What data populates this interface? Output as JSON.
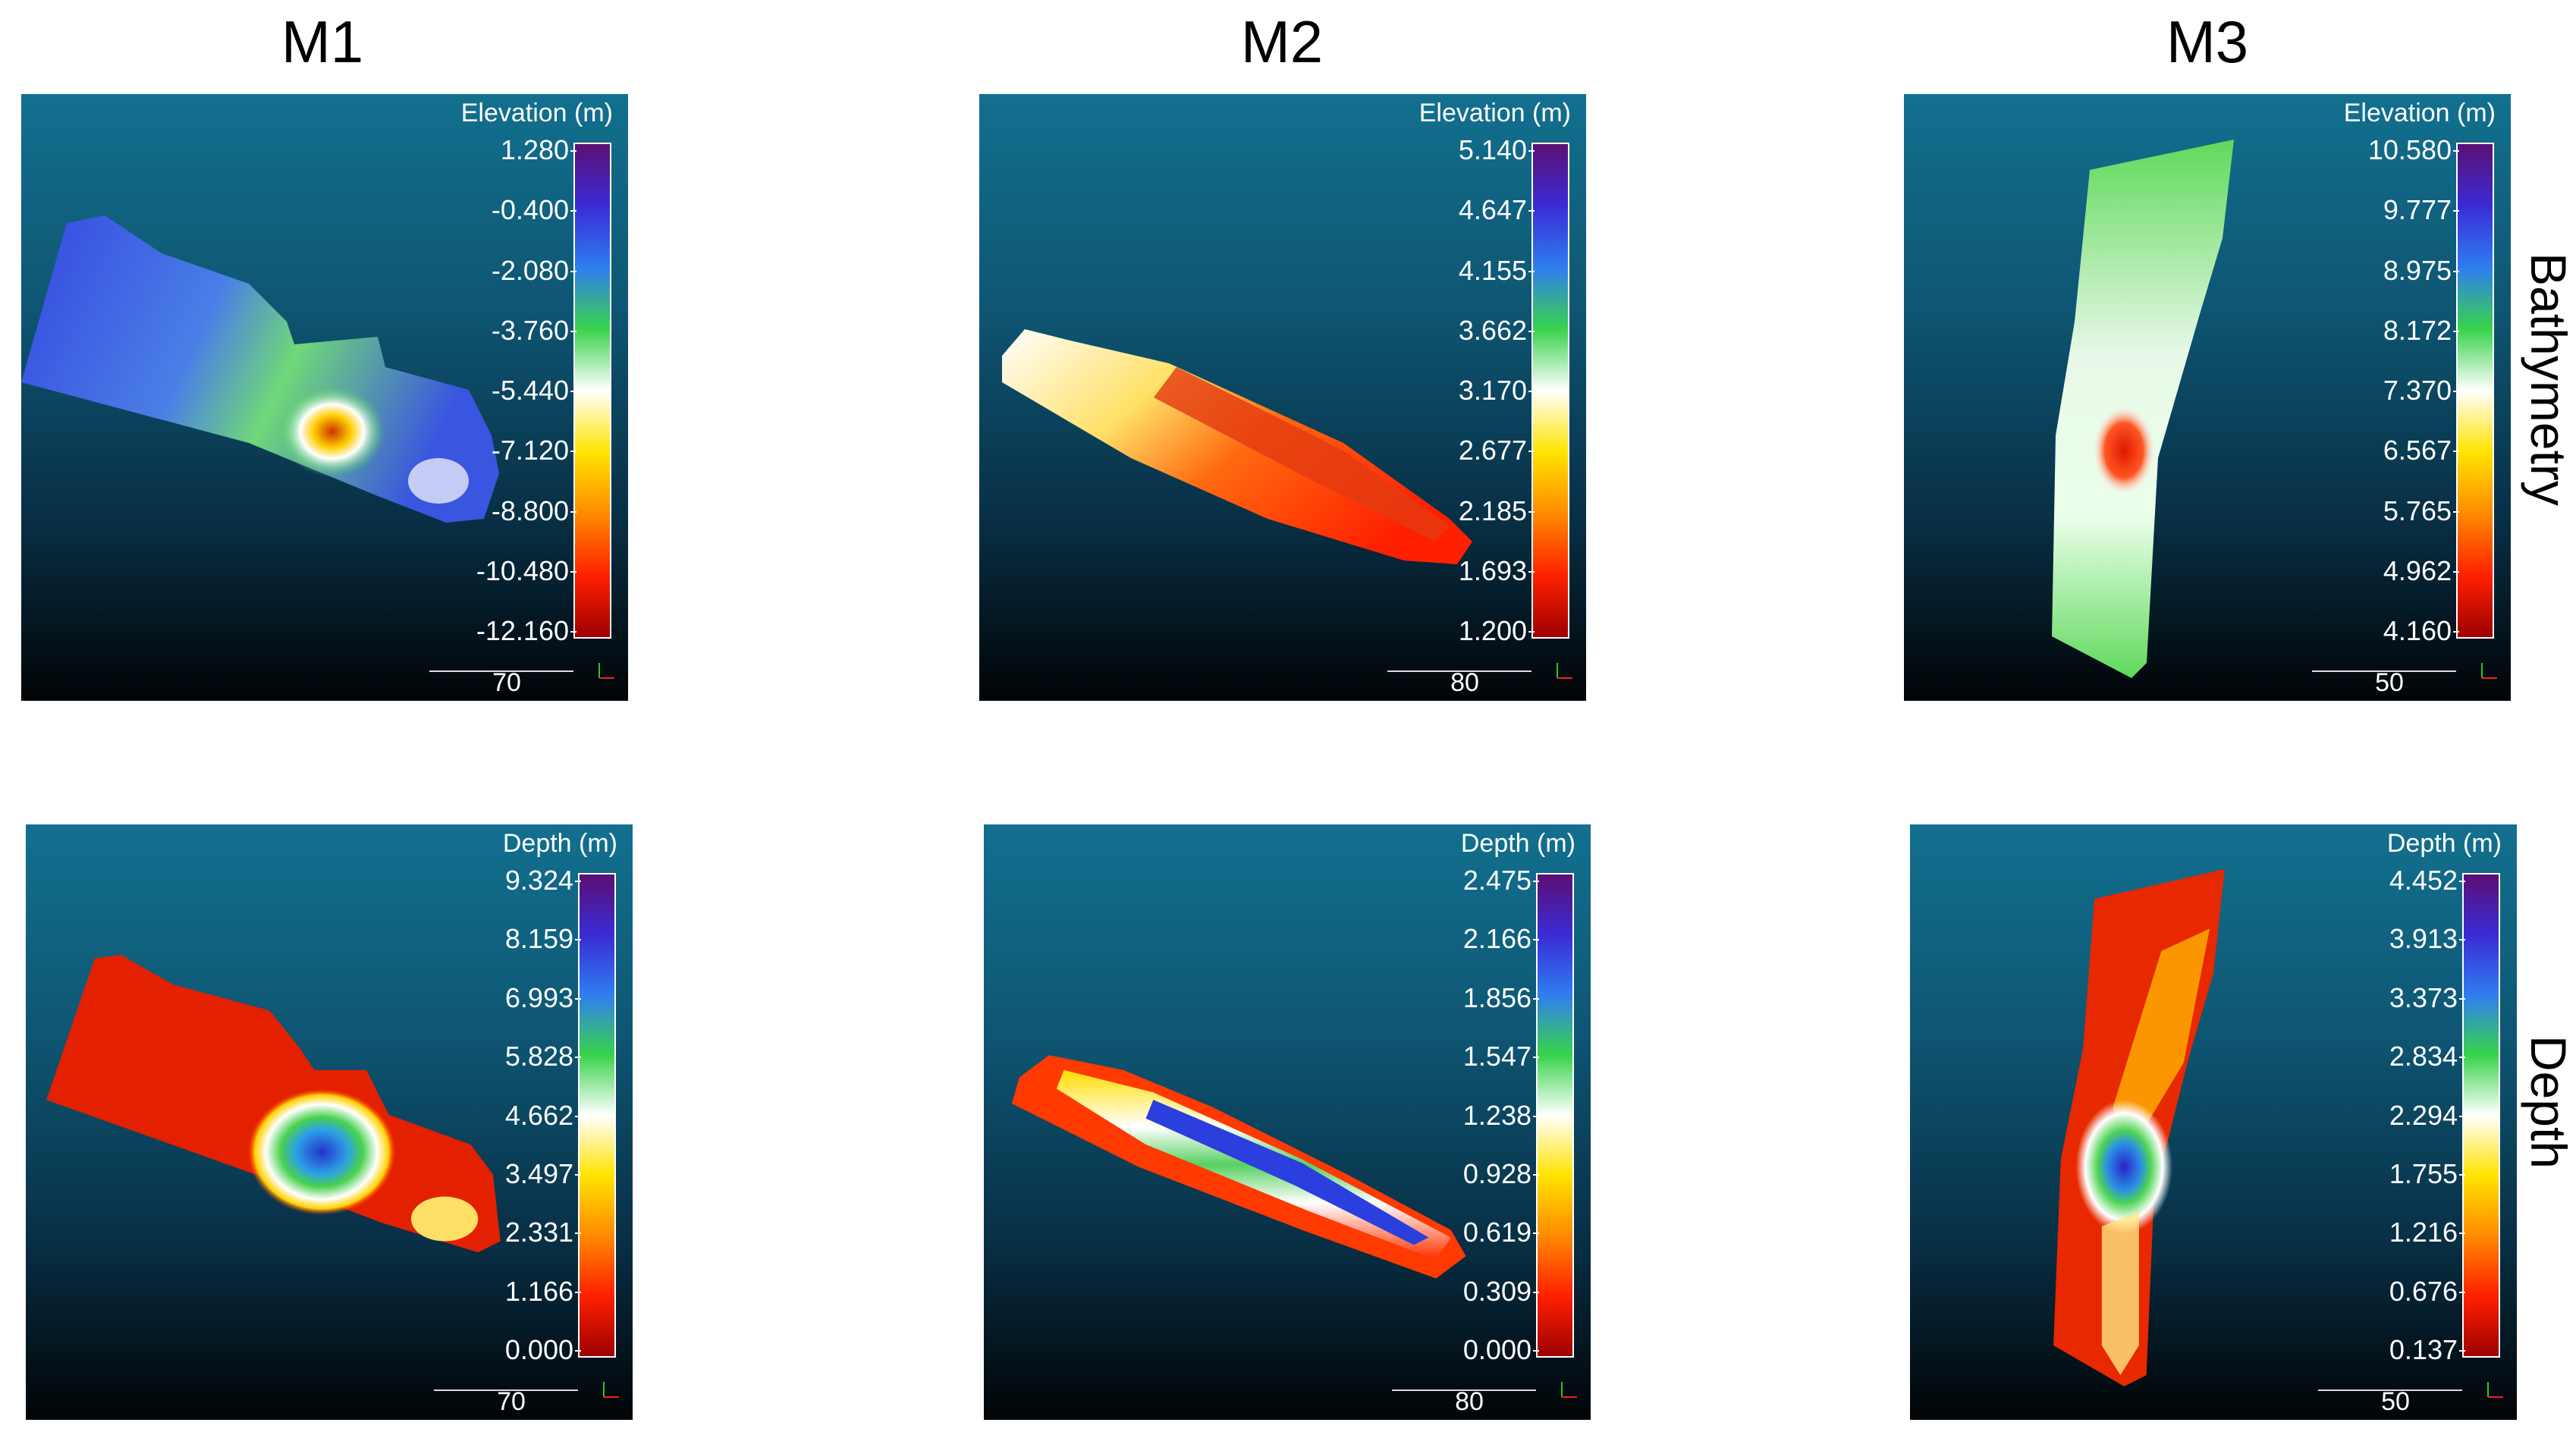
{
  "columns": [
    "M1",
    "M2",
    "M3"
  ],
  "rows": [
    "Bathymetry",
    "Depth"
  ],
  "panels": [
    {
      "id": "m1-bathy",
      "cbar_title": "Elevation (m)",
      "ticks": [
        "1.280",
        "-0.400",
        "-2.080",
        "-3.760",
        "-5.440",
        "-7.120",
        "-8.800",
        "-10.480",
        "-12.160"
      ],
      "scale": "70"
    },
    {
      "id": "m2-bathy",
      "cbar_title": "Elevation (m)",
      "ticks": [
        "5.140",
        "4.647",
        "4.155",
        "3.662",
        "3.170",
        "2.677",
        "2.185",
        "1.693",
        "1.200"
      ],
      "scale": "80"
    },
    {
      "id": "m3-bathy",
      "cbar_title": "Elevation (m)",
      "ticks": [
        "10.580",
        "9.777",
        "8.975",
        "8.172",
        "7.370",
        "6.567",
        "5.765",
        "4.962",
        "4.160"
      ],
      "scale": "50"
    },
    {
      "id": "m1-depth",
      "cbar_title": "Depth (m)",
      "ticks": [
        "9.324",
        "8.159",
        "6.993",
        "5.828",
        "4.662",
        "3.497",
        "2.331",
        "1.166",
        "0.000"
      ],
      "scale": "70"
    },
    {
      "id": "m2-depth",
      "cbar_title": "Depth (m)",
      "ticks": [
        "2.475",
        "2.166",
        "1.856",
        "1.547",
        "1.238",
        "0.928",
        "0.619",
        "0.309",
        "0.000"
      ],
      "scale": "80"
    },
    {
      "id": "m3-depth",
      "cbar_title": "Depth (m)",
      "ticks": [
        "4.452",
        "3.913",
        "3.373",
        "2.834",
        "2.294",
        "1.755",
        "1.216",
        "0.676",
        "0.137"
      ],
      "scale": "50"
    }
  ],
  "colormap": [
    "#5b0f73",
    "#3a2bd6",
    "#2f7ef0",
    "#38d34a",
    "#ffffff",
    "#ffe400",
    "#ff8a00",
    "#ff2000",
    "#9e0000"
  ]
}
